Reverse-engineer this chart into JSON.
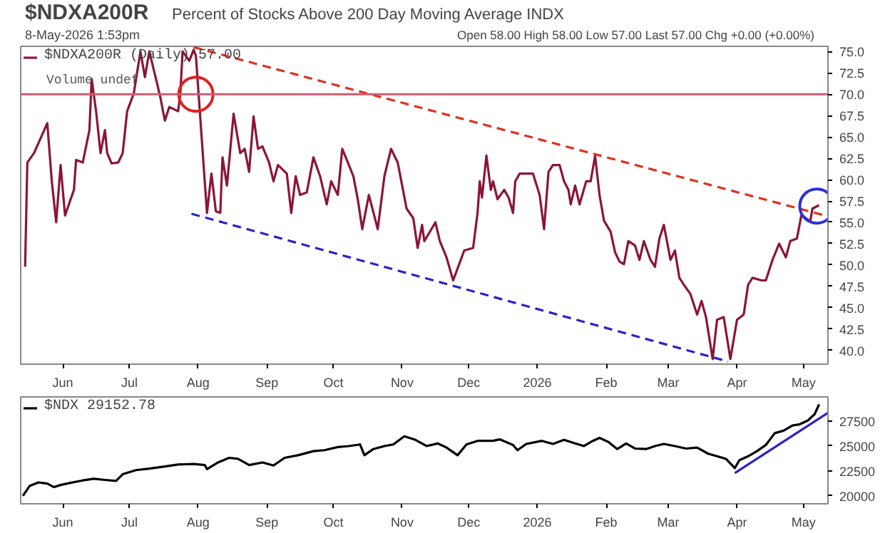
{
  "chart_data": [
    {
      "type": "line",
      "title": "$NDXA200R",
      "subtitle": "Percent of Stocks Above 200 Day Moving Average INDX",
      "annotations": [
        "8-May-2026 1:53pm",
        "Open 58.00  High 58.00  Low 57.00  Last 57.00  Chg +0.00 (+0.00%)",
        "Volume undef"
      ],
      "xlim": [
        "2025-05-13",
        "2026-05-12"
      ],
      "xticks": [
        {
          "value": "2025-06-01",
          "label": "Jun"
        },
        {
          "value": "2025-07-01",
          "label": "Jul"
        },
        {
          "value": "2025-08-01",
          "label": "Aug"
        },
        {
          "value": "2025-09-01",
          "label": "Sep"
        },
        {
          "value": "2025-10-01",
          "label": "Oct"
        },
        {
          "value": "2025-11-01",
          "label": "Nov"
        },
        {
          "value": "2025-12-01",
          "label": "Dec"
        },
        {
          "value": "2026-01-01",
          "label": "2026"
        },
        {
          "value": "2026-02-01",
          "label": "Feb"
        },
        {
          "value": "2026-03-01",
          "label": "Mar"
        },
        {
          "value": "2026-04-01",
          "label": "Apr"
        },
        {
          "value": "2026-05-01",
          "label": "May"
        }
      ],
      "ylim": [
        38.4,
        75.6
      ],
      "yticks": [
        {
          "value": 40,
          "label": "40.0"
        },
        {
          "value": 42.5,
          "label": "42.5"
        },
        {
          "value": 45,
          "label": "45.0"
        },
        {
          "value": 47.5,
          "label": "47.5"
        },
        {
          "value": 50,
          "label": "50.0"
        },
        {
          "value": 52.5,
          "label": "52.5"
        },
        {
          "value": 55,
          "label": "55.0"
        },
        {
          "value": 57.5,
          "label": "57.5"
        },
        {
          "value": 60,
          "label": "60.0"
        },
        {
          "value": 62.5,
          "label": "62.5"
        },
        {
          "value": 65,
          "label": "65.0"
        },
        {
          "value": 67.5,
          "label": "67.5"
        },
        {
          "value": 70,
          "label": "70.0"
        },
        {
          "value": 72.5,
          "label": "72.5"
        },
        {
          "value": 75,
          "label": "75.0"
        }
      ],
      "legend": "top left",
      "line_style": "solid",
      "ref_lines": [
        {
          "axis": "y",
          "value": 70,
          "color": "#d25a72",
          "line_style": "solid"
        }
      ],
      "series": [
        {
          "name": "$NDXA200R (Daily) 57.00",
          "color": "#8b1538",
          "x": [
            "2025-05-15",
            "2025-05-16",
            "2025-05-19",
            "2025-05-25",
            "2025-05-27",
            "2025-05-29",
            "2025-05-31",
            "2025-06-02",
            "2025-06-06",
            "2025-06-07",
            "2025-06-10",
            "2025-06-13",
            "2025-06-14",
            "2025-06-16",
            "2025-06-18",
            "2025-06-20",
            "2025-06-21",
            "2025-06-23",
            "2025-06-26",
            "2025-06-28",
            "2025-06-30",
            "2025-07-03",
            "2025-07-06",
            "2025-07-08",
            "2025-07-10",
            "2025-07-13",
            "2025-07-15",
            "2025-07-17",
            "2025-07-19",
            "2025-07-23",
            "2025-07-24",
            "2025-07-25",
            "2025-07-28",
            "2025-07-30",
            "2025-07-31",
            "2025-08-05",
            "2025-08-07",
            "2025-08-09",
            "2025-08-11",
            "2025-08-12",
            "2025-08-14",
            "2025-08-17",
            "2025-08-20",
            "2025-08-22",
            "2025-08-24",
            "2025-08-26",
            "2025-08-28",
            "2025-08-30",
            "2025-09-02",
            "2025-09-04",
            "2025-09-06",
            "2025-09-10",
            "2025-09-12",
            "2025-09-14",
            "2025-09-16",
            "2025-09-19",
            "2025-09-22",
            "2025-09-25",
            "2025-09-28",
            "2025-09-30",
            "2025-10-03",
            "2025-10-05",
            "2025-10-08",
            "2025-10-10",
            "2025-10-12",
            "2025-10-14",
            "2025-10-17",
            "2025-10-21",
            "2025-10-24",
            "2025-10-27",
            "2025-10-30",
            "2025-11-03",
            "2025-11-06",
            "2025-11-08",
            "2025-11-10",
            "2025-11-11",
            "2025-11-16",
            "2025-11-18",
            "2025-11-21",
            "2025-11-24",
            "2025-11-26",
            "2025-11-29",
            "2025-12-03",
            "2025-12-05",
            "2025-12-06",
            "2025-12-07",
            "2025-12-09",
            "2025-12-11",
            "2025-12-12",
            "2025-12-14",
            "2025-12-17",
            "2025-12-19",
            "2025-12-21",
            "2025-12-22",
            "2025-12-24",
            "2025-12-27",
            "2025-12-30",
            "2026-01-02",
            "2026-01-04",
            "2026-01-06",
            "2026-01-08",
            "2026-01-11",
            "2026-01-13",
            "2026-01-15",
            "2026-01-16",
            "2026-01-18",
            "2026-01-20",
            "2026-01-23",
            "2026-01-25",
            "2026-01-27",
            "2026-01-29",
            "2026-01-31",
            "2026-02-03",
            "2026-02-05",
            "2026-02-07",
            "2026-02-09",
            "2026-02-11",
            "2026-02-14",
            "2026-02-16",
            "2026-02-18",
            "2026-02-21",
            "2026-02-23",
            "2026-02-25",
            "2026-02-27",
            "2026-03-02",
            "2026-03-04",
            "2026-03-06",
            "2026-03-08",
            "2026-03-11",
            "2026-03-14",
            "2026-03-16",
            "2026-03-18",
            "2026-03-21",
            "2026-03-23",
            "2026-03-26",
            "2026-03-29",
            "2026-04-01",
            "2026-04-04",
            "2026-04-06",
            "2026-04-08",
            "2026-04-12",
            "2026-04-14",
            "2026-04-17",
            "2026-04-20",
            "2026-04-23",
            "2026-04-25",
            "2026-04-28",
            "2026-04-30",
            "2026-05-02",
            "2026-05-04",
            "2026-05-05",
            "2026-05-08"
          ],
          "values": [
            49.8,
            62.0,
            63.1,
            66.6,
            59.9,
            55.0,
            61.7,
            55.8,
            58.8,
            62.3,
            62.0,
            65.8,
            71.8,
            68.0,
            63.1,
            65.8,
            63.1,
            61.9,
            62.0,
            63.1,
            68.0,
            70.1,
            75.0,
            72.0,
            75.0,
            71.8,
            69.6,
            66.9,
            68.5,
            68.0,
            70.1,
            75.0,
            73.9,
            75.2,
            74.5,
            56.1,
            60.7,
            56.3,
            56.1,
            62.6,
            59.3,
            67.7,
            63.1,
            63.6,
            60.9,
            67.4,
            63.6,
            63.9,
            62.0,
            59.8,
            61.7,
            60.7,
            56.1,
            60.4,
            58.2,
            58.5,
            62.6,
            60.4,
            57.1,
            59.8,
            58.2,
            63.6,
            61.7,
            60.4,
            57.7,
            54.2,
            58.2,
            54.2,
            60.4,
            63.6,
            62.0,
            56.6,
            55.5,
            52.0,
            54.7,
            52.8,
            55.0,
            52.8,
            50.9,
            48.2,
            49.6,
            51.7,
            52.0,
            56.1,
            59.8,
            57.9,
            62.8,
            58.8,
            59.8,
            57.7,
            58.8,
            57.9,
            56.1,
            59.8,
            60.7,
            60.7,
            60.7,
            58.2,
            54.2,
            60.9,
            61.7,
            61.7,
            59.8,
            58.8,
            57.1,
            59.3,
            57.1,
            59.8,
            59.8,
            62.8,
            58.2,
            55.2,
            53.9,
            51.5,
            50.4,
            50.1,
            52.8,
            52.3,
            50.6,
            52.8,
            50.6,
            49.8,
            53.1,
            54.7,
            50.6,
            51.7,
            48.5,
            47.7,
            46.6,
            44.2,
            45.8,
            43.9,
            39.0,
            43.6,
            43.9,
            39.0,
            43.6,
            44.2,
            47.7,
            48.5,
            48.2,
            48.2,
            50.6,
            52.5,
            50.9,
            52.8,
            53.1,
            55.8,
            55.5,
            55.1,
            56.6,
            57.0
          ]
        },
        {
          "type": "line",
          "color": "#e0301e",
          "line_style": "dashed",
          "x": [
            "2025-07-30",
            "2026-05-12"
          ],
          "values": [
            75.5,
            55.7
          ]
        },
        {
          "type": "line",
          "color": "#2a22c8",
          "line_style": "dashed",
          "x": [
            "2025-07-29",
            "2026-03-28"
          ],
          "values": [
            56.0,
            38.7
          ]
        },
        {
          "type": "scatter",
          "marker": "circle",
          "color": "#e0201e",
          "x": [
            "2025-07-31"
          ],
          "values": [
            70
          ]
        },
        {
          "type": "scatter",
          "marker": "circle",
          "color": "#2a30d8",
          "x": [
            "2026-05-07"
          ],
          "values": [
            56.9
          ]
        }
      ]
    },
    {
      "type": "line",
      "xlim": [
        "2025-05-13",
        "2026-05-12"
      ],
      "xticks": [
        {
          "value": "2025-06-01",
          "label": "Jun"
        },
        {
          "value": "2025-07-01",
          "label": "Jul"
        },
        {
          "value": "2025-08-01",
          "label": "Aug"
        },
        {
          "value": "2025-09-01",
          "label": "Sep"
        },
        {
          "value": "2025-10-01",
          "label": "Oct"
        },
        {
          "value": "2025-11-01",
          "label": "Nov"
        },
        {
          "value": "2025-12-01",
          "label": "Dec"
        },
        {
          "value": "2026-01-01",
          "label": "2026"
        },
        {
          "value": "2026-02-01",
          "label": "Feb"
        },
        {
          "value": "2026-03-01",
          "label": "Mar"
        },
        {
          "value": "2026-04-01",
          "label": "Apr"
        },
        {
          "value": "2026-05-01",
          "label": "May"
        }
      ],
      "ylim": [
        19200,
        29900
      ],
      "yticks": [
        20000,
        22500,
        25000,
        27500
      ],
      "legend": "top left",
      "line_style": "solid",
      "series": [
        {
          "name": "$NDX 29152.78",
          "color": "#000000",
          "x": [
            "2025-05-14",
            "2025-05-17",
            "2025-05-21",
            "2025-05-25",
            "2025-05-28",
            "2025-05-31",
            "2025-06-04",
            "2025-06-10",
            "2025-06-15",
            "2025-06-20",
            "2025-06-25",
            "2025-06-28",
            "2025-07-04",
            "2025-07-10",
            "2025-07-17",
            "2025-07-23",
            "2025-07-30",
            "2025-08-04",
            "2025-08-05",
            "2025-08-10",
            "2025-08-15",
            "2025-08-19",
            "2025-08-24",
            "2025-08-30",
            "2025-09-04",
            "2025-09-09",
            "2025-09-15",
            "2025-09-22",
            "2025-09-27",
            "2025-10-03",
            "2025-10-08",
            "2025-10-13",
            "2025-10-15",
            "2025-10-19",
            "2025-10-24",
            "2025-10-28",
            "2025-11-02",
            "2025-11-07",
            "2025-11-12",
            "2025-11-17",
            "2025-11-21",
            "2025-11-26",
            "2025-11-30",
            "2025-12-05",
            "2025-12-12",
            "2025-12-15",
            "2025-12-21",
            "2025-12-23",
            "2025-12-27",
            "2026-01-03",
            "2026-01-08",
            "2026-01-13",
            "2026-01-18",
            "2026-01-22",
            "2026-01-26",
            "2026-01-29",
            "2026-02-02",
            "2026-02-06",
            "2026-02-10",
            "2026-02-14",
            "2026-02-19",
            "2026-02-23",
            "2026-02-27",
            "2026-03-04",
            "2026-03-09",
            "2026-03-14",
            "2026-03-19",
            "2026-03-23",
            "2026-03-27",
            "2026-03-31",
            "2026-04-02",
            "2026-04-06",
            "2026-04-10",
            "2026-04-14",
            "2026-04-18",
            "2026-04-22",
            "2026-04-26",
            "2026-04-29",
            "2026-05-03",
            "2026-05-06",
            "2026-05-08"
          ],
          "values": [
            20000,
            20980,
            21340,
            21230,
            20870,
            21080,
            21280,
            21540,
            21700,
            21590,
            21490,
            22160,
            22570,
            22720,
            22930,
            23130,
            23190,
            23080,
            22670,
            23340,
            23800,
            23700,
            23080,
            23340,
            23030,
            23800,
            24060,
            24470,
            24570,
            24880,
            24980,
            25140,
            24060,
            24680,
            24980,
            25140,
            25960,
            25600,
            24980,
            25240,
            24830,
            24060,
            25140,
            25500,
            25500,
            25650,
            25090,
            24570,
            25190,
            25500,
            25190,
            25600,
            25240,
            24980,
            25500,
            25800,
            25390,
            24680,
            25240,
            24730,
            24680,
            24980,
            25190,
            24980,
            24730,
            24830,
            24210,
            23960,
            23700,
            22770,
            23550,
            23960,
            24470,
            25090,
            26270,
            26520,
            27040,
            27140,
            27550,
            28170,
            29152.78
          ]
        },
        {
          "type": "line",
          "color": "#2a22c8",
          "line_style": "solid",
          "x": [
            "2026-03-31",
            "2026-05-12"
          ],
          "values": [
            22280,
            28300
          ]
        }
      ]
    }
  ]
}
